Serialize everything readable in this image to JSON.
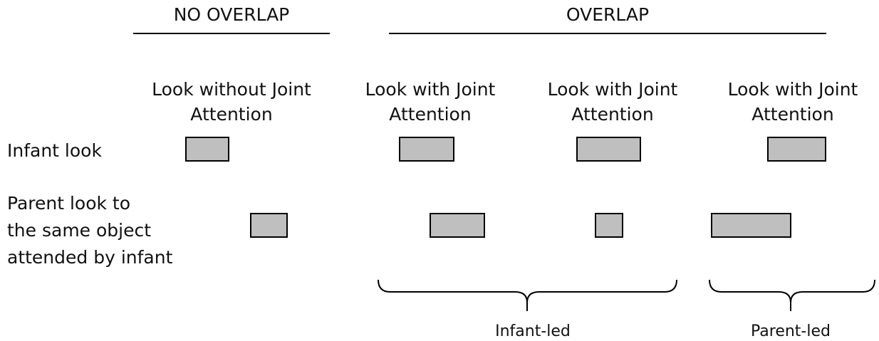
{
  "headers": {
    "no_overlap": "NO OVERLAP",
    "overlap": "OVERLAP"
  },
  "columns": [
    {
      "lines": [
        "Look without Joint",
        "Attention"
      ]
    },
    {
      "lines": [
        "Look with Joint",
        "Attention"
      ]
    },
    {
      "lines": [
        "Look with Joint",
        "Attention"
      ]
    },
    {
      "lines": [
        "Look with Joint",
        "Attention"
      ]
    }
  ],
  "rows": [
    {
      "lines": [
        "Infant look"
      ]
    },
    {
      "lines": [
        "Parent look to",
        "the same object",
        "attended by infant"
      ]
    }
  ],
  "braces": [
    {
      "label": "Infant-led"
    },
    {
      "label": "Parent-led"
    }
  ]
}
